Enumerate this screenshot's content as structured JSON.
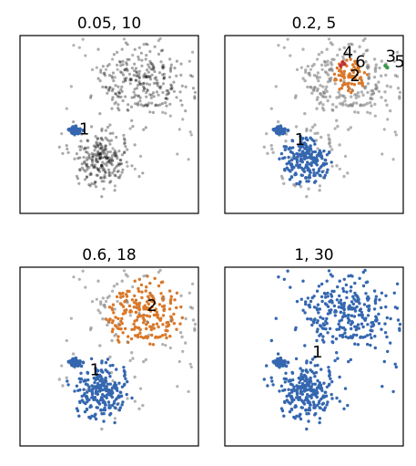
{
  "chart_data": [
    {
      "type": "scatter",
      "title": "0.05, 10",
      "xlim": [
        0,
        10
      ],
      "ylim": [
        0,
        10
      ],
      "noise_color": "#7f7f7f",
      "series": [
        {
          "values_source": "noise",
          "color": "#000000",
          "clouds": [
            {
              "cx": 4.5,
              "cy": 2.8,
              "sd": 0.9,
              "n": 260
            },
            {
              "cx": 6.8,
              "cy": 7.2,
              "sd": 1.3,
              "n": 260
            }
          ]
        },
        {
          "cluster": "1",
          "color": "#3567b0",
          "clouds": [
            {
              "cx": 3.1,
              "cy": 4.6,
              "sd": 0.2,
              "n": 50
            }
          ]
        }
      ],
      "labels": [
        {
          "text": "1",
          "x": 3.6,
          "y": 4.7
        }
      ]
    },
    {
      "type": "scatter",
      "title": "0.2, 5",
      "xlim": [
        0,
        10
      ],
      "ylim": [
        0,
        10
      ],
      "series": [
        {
          "cluster": "noise",
          "color": "#7f7f7f"
        },
        {
          "cluster": "1",
          "color": "#3567b0"
        },
        {
          "cluster": "2",
          "color": "#d9782a"
        },
        {
          "cluster": "3",
          "color": "#3b9a4a"
        },
        {
          "cluster": "4",
          "color": "#c4312f"
        },
        {
          "cluster": "5",
          "color": "#3b9a4a"
        },
        {
          "cluster": "6",
          "color": "#c4312f"
        }
      ],
      "labels": [
        {
          "text": "1",
          "x": 4.2,
          "y": 4.1
        },
        {
          "text": "2",
          "x": 7.3,
          "y": 7.7
        },
        {
          "text": "3",
          "x": 9.3,
          "y": 8.8
        },
        {
          "text": "4",
          "x": 6.9,
          "y": 9.0
        },
        {
          "text": "5",
          "x": 9.8,
          "y": 8.5
        },
        {
          "text": "6",
          "x": 7.6,
          "y": 8.5
        }
      ]
    },
    {
      "type": "scatter",
      "title": "0.6, 18",
      "xlim": [
        0,
        10
      ],
      "ylim": [
        0,
        10
      ],
      "series": [
        {
          "cluster": "noise",
          "color": "#7f7f7f"
        },
        {
          "cluster": "1",
          "color": "#3567b0"
        },
        {
          "cluster": "2",
          "color": "#d9782a"
        }
      ],
      "labels": [
        {
          "text": "1",
          "x": 4.2,
          "y": 4.2
        },
        {
          "text": "2",
          "x": 7.4,
          "y": 7.8
        }
      ]
    },
    {
      "type": "scatter",
      "title": "1, 30",
      "xlim": [
        0,
        10
      ],
      "ylim": [
        0,
        10
      ],
      "series": [
        {
          "cluster": "1",
          "color": "#3567b0"
        }
      ],
      "labels": [
        {
          "text": "1",
          "x": 5.2,
          "y": 5.2
        }
      ]
    }
  ]
}
